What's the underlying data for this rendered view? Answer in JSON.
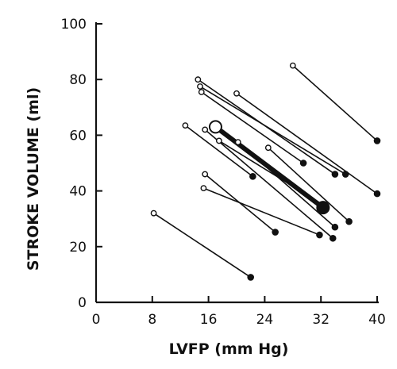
{
  "chart_data": {
    "type": "scatter",
    "xlabel": "LVFP (mm Hg)",
    "ylabel": "STROKE VOLUME (ml)",
    "xlim": [
      0,
      40
    ],
    "ylim": [
      0,
      100
    ],
    "x_ticks": [
      0,
      8,
      16,
      24,
      32,
      40
    ],
    "y_ticks": [
      0,
      20,
      40,
      60,
      80,
      100
    ],
    "x_tick_labels": [
      "0",
      "8",
      "16",
      "24",
      "32",
      "40"
    ],
    "y_tick_labels": [
      "0",
      "20",
      "40",
      "60",
      "80",
      "100"
    ],
    "grid": false,
    "legend": "none",
    "series": [
      {
        "from": [
          8.2,
          32
        ],
        "to": [
          22,
          9
        ]
      },
      {
        "from": [
          12.7,
          63.5
        ],
        "to": [
          22.3,
          45.2
        ]
      },
      {
        "from": [
          15.5,
          46
        ],
        "to": [
          25.5,
          25.2
        ]
      },
      {
        "from": [
          15.3,
          41
        ],
        "to": [
          31.8,
          24.2
        ]
      },
      {
        "from": [
          14.5,
          80
        ],
        "to": [
          34,
          46
        ]
      },
      {
        "from": [
          14.8,
          77.5
        ],
        "to": [
          35.5,
          46
        ]
      },
      {
        "from": [
          15,
          75.5
        ],
        "to": [
          29.5,
          50
        ]
      },
      {
        "from": [
          15.5,
          62
        ],
        "to": [
          33.7,
          23
        ]
      },
      {
        "from": [
          17.5,
          58
        ],
        "to": [
          32.3,
          35
        ]
      },
      {
        "from": [
          20,
          75
        ],
        "to": [
          40,
          39
        ]
      },
      {
        "from": [
          20.2,
          57.5
        ],
        "to": [
          34,
          27
        ]
      },
      {
        "from": [
          24.5,
          55.5
        ],
        "to": [
          36,
          29
        ]
      },
      {
        "from": [
          28,
          85
        ],
        "to": [
          40,
          58
        ]
      }
    ],
    "mean": {
      "from": [
        17,
        63
      ],
      "to": [
        32.3,
        34
      ]
    }
  }
}
